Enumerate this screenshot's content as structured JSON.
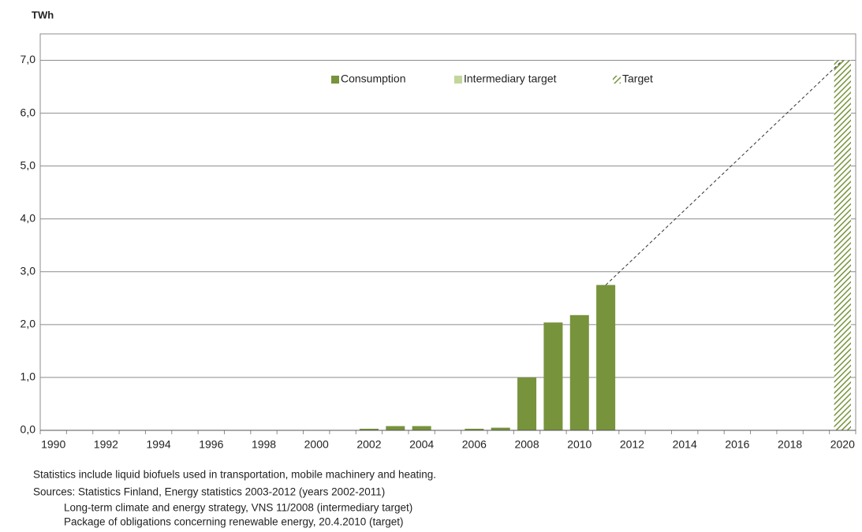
{
  "chart_data": {
    "type": "bar",
    "y_label": "TWh",
    "categories": [
      "1990",
      null,
      "1992",
      null,
      "1994",
      null,
      "1996",
      null,
      "1998",
      null,
      "2000",
      null,
      "2002",
      null,
      "2004",
      null,
      "2006",
      null,
      "2008",
      null,
      "2010",
      null,
      "2012",
      null,
      "2014",
      null,
      "2016",
      null,
      "2018",
      null,
      "2020"
    ],
    "series": [
      {
        "name": "Consumption",
        "color": "#77933c",
        "values": [
          null,
          null,
          null,
          null,
          null,
          null,
          null,
          null,
          null,
          null,
          null,
          null,
          0.03,
          0.08,
          0.08,
          null,
          0.03,
          0.05,
          1.0,
          2.04,
          2.18,
          2.75,
          null,
          null,
          null,
          null,
          null,
          null,
          null,
          null,
          null
        ]
      },
      {
        "name": "Intermediary target",
        "color": "#c3d69b",
        "values": [
          null,
          null,
          null,
          null,
          null,
          null,
          null,
          null,
          null,
          null,
          null,
          null,
          null,
          null,
          null,
          null,
          null,
          null,
          null,
          null,
          null,
          null,
          null,
          null,
          null,
          null,
          null,
          null,
          null,
          null,
          null
        ]
      },
      {
        "name": "Target",
        "color": "#77933c",
        "hatched": true,
        "values": [
          null,
          null,
          null,
          null,
          null,
          null,
          null,
          null,
          null,
          null,
          null,
          null,
          null,
          null,
          null,
          null,
          null,
          null,
          null,
          null,
          null,
          null,
          null,
          null,
          null,
          null,
          null,
          null,
          null,
          null,
          7.0
        ]
      }
    ],
    "ylim": [
      0,
      7.5
    ],
    "yticks": [
      {
        "value": 0,
        "label": "0,0"
      },
      {
        "value": 1,
        "label": "1,0"
      },
      {
        "value": 2,
        "label": "2,0"
      },
      {
        "value": 3,
        "label": "3,0"
      },
      {
        "value": 4,
        "label": "4,0"
      },
      {
        "value": 5,
        "label": "5,0"
      },
      {
        "value": 6,
        "label": "6,0"
      },
      {
        "value": 7,
        "label": "7,0"
      }
    ],
    "grid": true,
    "notes": [
      "Statistics include liquid biofuels used in transportation, mobile machinery and heating.",
      "Sources: Statistics Finland, Energy statistics 2003-2012 (years 2002-2011)",
      "Long-term climate and energy strategy, VNS 11/2008 (intermediary target)",
      "Package of obligations concerning renewable energy, 20.4.2010 (target)"
    ]
  }
}
